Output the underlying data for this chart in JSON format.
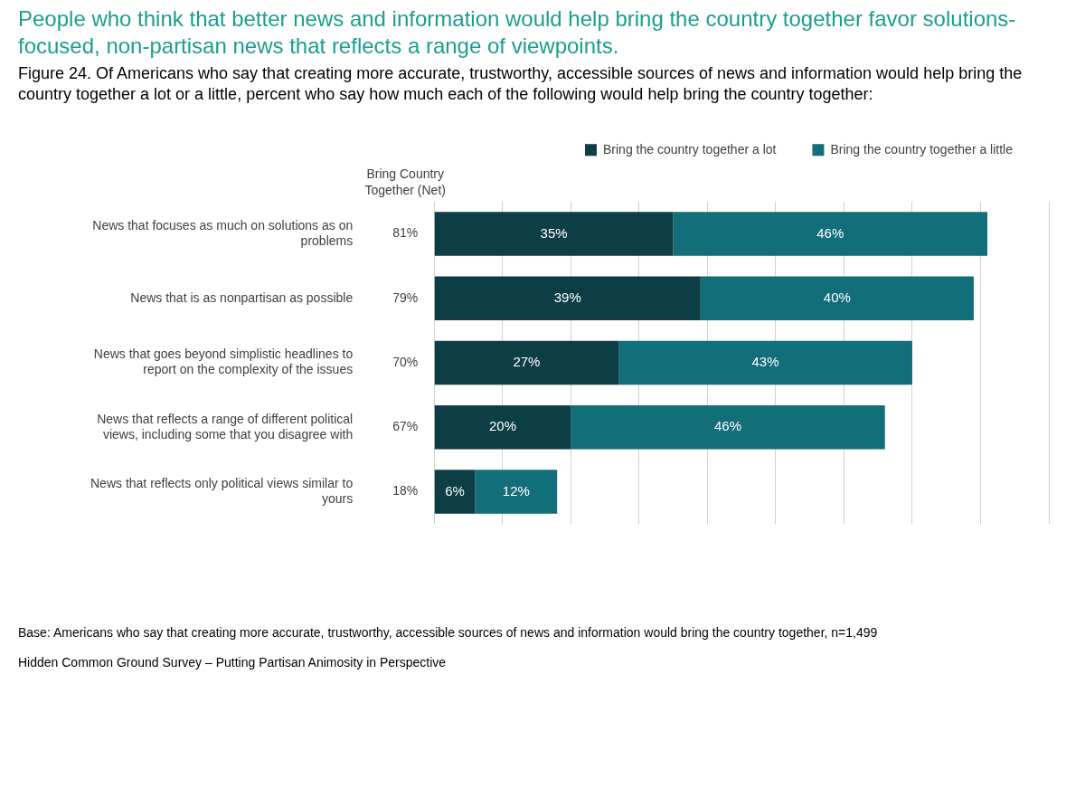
{
  "chart_data": {
    "type": "bar",
    "orientation": "horizontal",
    "stacked": true,
    "title": "People who think that better news and information would help bring the country together favor solutions-focused, non-partisan news that reflects a range of viewpoints.",
    "subtitle": "Figure 24. Of Americans who say that creating more accurate, trustworthy, accessible sources of news and information would help bring the country together a lot or a little, percent who say how much each of the following would help bring the country together:",
    "categories": [
      "News that focuses as much on solutions as on problems",
      "News that is as nonpartisan as possible",
      "News that goes beyond simplistic headlines to report on the complexity of the issues",
      "News that reflects a range of different political views, including some that you disagree with",
      "News that reflects only political views similar to yours"
    ],
    "series": [
      {
        "name": "Bring the country together a lot",
        "color": "#0d3d45",
        "values": [
          35,
          39,
          27,
          20,
          6
        ],
        "value_labels": [
          "35%",
          "39%",
          "27%",
          "20%",
          "6%"
        ]
      },
      {
        "name": "Bring the country together a little",
        "color": "#126e78",
        "values": [
          46,
          40,
          43,
          46,
          12
        ],
        "value_labels": [
          "46%",
          "40%",
          "43%",
          "46%",
          "12%"
        ]
      }
    ],
    "tick_labels": "y",
    "grid": "x",
    "legend": "top right",
    "totals": [
      "81%",
      "79%",
      "70%",
      "67%",
      "18%"
    ],
    "annotations": [
      "Bring Country Together (Net)",
      "Base: Americans who say that creating more accurate, trustworthy, accessible sources of news and information would bring the country together, n=1,499",
      "Hidden Common Ground Survey – Putting Partisan Animosity in Perspective"
    ]
  }
}
